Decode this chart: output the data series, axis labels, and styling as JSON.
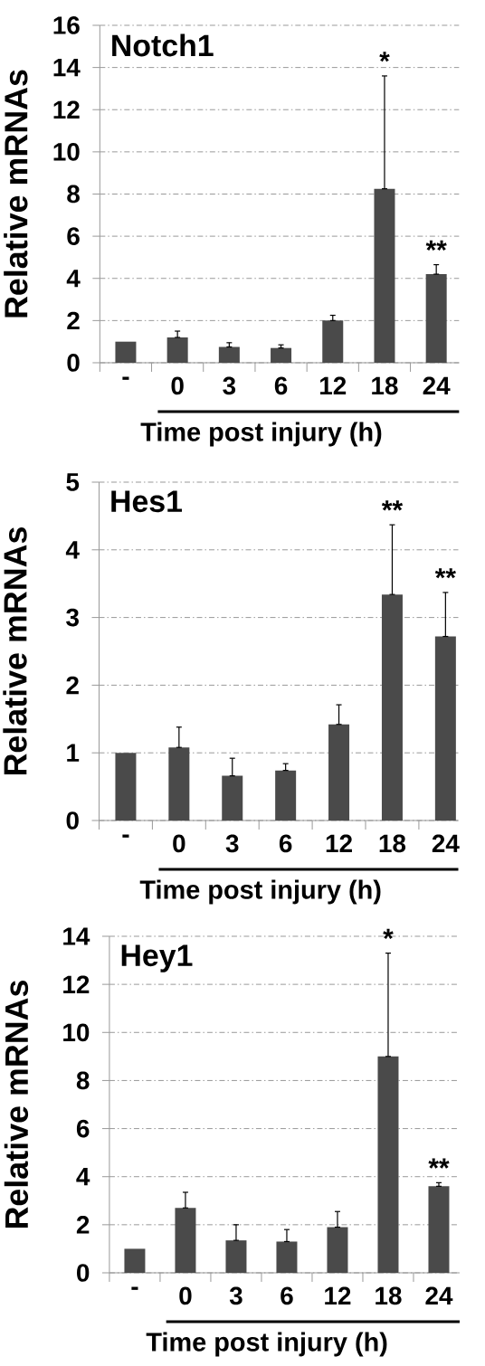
{
  "chart_data": [
    {
      "type": "bar",
      "title": "Notch1",
      "ylabel": "Relative mRNAs",
      "xlabel": "Time post injury (h)",
      "categories": [
        "-",
        "0",
        "3",
        "6",
        "12",
        "18",
        "24"
      ],
      "values": [
        1.0,
        1.2,
        0.75,
        0.7,
        2.0,
        8.25,
        4.2
      ],
      "errors": [
        null,
        [
          1.2,
          1.5
        ],
        [
          0.75,
          0.95
        ],
        [
          0.7,
          0.85
        ],
        [
          2.0,
          2.25
        ],
        [
          8.25,
          13.6
        ],
        [
          4.2,
          4.65
        ]
      ],
      "color": "#4a4a4a",
      "ylim": [
        0,
        16
      ],
      "yticks": [
        0,
        2,
        4,
        6,
        8,
        10,
        12,
        14,
        16
      ],
      "grid": "y",
      "annotations": [
        "*",
        "**"
      ]
    },
    {
      "type": "bar",
      "title": "Hes1",
      "ylabel": "Relative mRNAs",
      "xlabel": "Time post injury (h)",
      "categories": [
        "-",
        "0",
        "3",
        "6",
        "12",
        "18",
        "24"
      ],
      "values": [
        1.0,
        1.08,
        0.66,
        0.74,
        1.42,
        3.34,
        2.72
      ],
      "errors": [
        null,
        [
          1.08,
          1.38
        ],
        [
          0.66,
          0.92
        ],
        [
          0.74,
          0.84
        ],
        [
          1.42,
          1.71
        ],
        [
          3.34,
          4.37
        ],
        [
          2.72,
          3.37
        ]
      ],
      "color": "#4a4a4a",
      "ylim": [
        0,
        5
      ],
      "yticks": [
        0,
        1,
        2,
        3,
        4,
        5
      ],
      "grid": "y",
      "annotations": [
        "**",
        "**"
      ]
    },
    {
      "type": "bar",
      "title": "Hey1",
      "ylabel": "Relative mRNAs",
      "xlabel": "Time post injury (h)",
      "categories": [
        "-",
        "0",
        "3",
        "6",
        "12",
        "18",
        "24"
      ],
      "values": [
        1.0,
        2.7,
        1.35,
        1.3,
        1.9,
        9.0,
        3.6
      ],
      "errors": [
        null,
        [
          2.7,
          3.35
        ],
        [
          1.35,
          2.0
        ],
        [
          1.3,
          1.8
        ],
        [
          1.9,
          2.55
        ],
        [
          9.0,
          13.3
        ],
        [
          3.6,
          3.75
        ]
      ],
      "color": "#4a4a4a",
      "ylim": [
        0,
        14
      ],
      "yticks": [
        0,
        2,
        4,
        6,
        8,
        10,
        12,
        14
      ],
      "grid": "y",
      "annotations": [
        "*",
        "**"
      ]
    }
  ]
}
